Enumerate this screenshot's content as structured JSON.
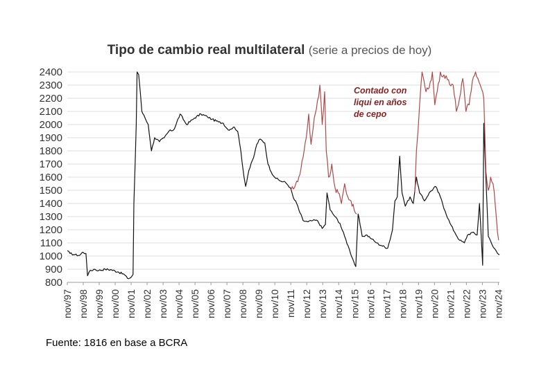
{
  "title": {
    "main": "Tipo de cambio real multilateral",
    "sub": "(serie a precios de hoy)"
  },
  "source": "Fuente: 1816 en base a BCRA",
  "colors": {
    "oficial": "#111111",
    "ccl": "#b04848",
    "grid": "#dcdcdc",
    "annotation": "#8b1e1e"
  },
  "chart_data": {
    "type": "line",
    "title": "Tipo de cambio real multilateral (serie a precios de hoy)",
    "ylim": [
      800,
      2400
    ],
    "yticks": [
      800,
      900,
      1000,
      1100,
      1200,
      1300,
      1400,
      1500,
      1600,
      1700,
      1800,
      1900,
      2000,
      2100,
      2200,
      2300,
      2400
    ],
    "xlim": [
      1997.83,
      2024.9
    ],
    "xtick_labels": [
      "nov/97",
      "nov/98",
      "nov/99",
      "nov/00",
      "nov/01",
      "nov/02",
      "nov/03",
      "nov/04",
      "nov/05",
      "nov/06",
      "nov/07",
      "nov/08",
      "nov/09",
      "nov/10",
      "nov/11",
      "nov/12",
      "nov/13",
      "nov/14",
      "nov/15",
      "nov/16",
      "nov/17",
      "nov/18",
      "nov/19",
      "nov/20",
      "nov/21",
      "nov/22",
      "nov/23",
      "nov/24"
    ],
    "grid": "horizontal",
    "annotation": [
      "Contado con",
      "liqui en años",
      "de cepo"
    ],
    "series": [
      {
        "points": [
          [
            1997.83,
            1040
          ],
          [
            1998.0,
            1020
          ],
          [
            1998.3,
            1010
          ],
          [
            1998.6,
            1005
          ],
          [
            1998.8,
            1030
          ],
          [
            1999.0,
            1020
          ],
          [
            1999.1,
            850
          ],
          [
            1999.2,
            880
          ],
          [
            1999.5,
            900
          ],
          [
            1999.8,
            890
          ],
          [
            2000.2,
            900
          ],
          [
            2000.6,
            895
          ],
          [
            2001.0,
            880
          ],
          [
            2001.4,
            860
          ],
          [
            2001.6,
            830
          ],
          [
            2001.8,
            835
          ],
          [
            2001.95,
            860
          ],
          [
            2002.0,
            1400
          ],
          [
            2002.08,
            1700
          ],
          [
            2002.15,
            2000
          ],
          [
            2002.2,
            2400
          ],
          [
            2002.3,
            2380
          ],
          [
            2002.4,
            2250
          ],
          [
            2002.5,
            2100
          ],
          [
            2002.7,
            2050
          ],
          [
            2002.9,
            2000
          ],
          [
            2003.1,
            1800
          ],
          [
            2003.3,
            1900
          ],
          [
            2003.6,
            1870
          ],
          [
            2003.9,
            1900
          ],
          [
            2004.2,
            1950
          ],
          [
            2004.5,
            1960
          ],
          [
            2004.9,
            2080
          ],
          [
            2005.3,
            2000
          ],
          [
            2005.8,
            2050
          ],
          [
            2006.2,
            2080
          ],
          [
            2006.6,
            2060
          ],
          [
            2006.9,
            2040
          ],
          [
            2007.3,
            2020
          ],
          [
            2007.6,
            2010
          ],
          [
            2007.9,
            1960
          ],
          [
            2008.3,
            1980
          ],
          [
            2008.5,
            1950
          ],
          [
            2008.7,
            1800
          ],
          [
            2008.9,
            1600
          ],
          [
            2009.0,
            1530
          ],
          [
            2009.2,
            1650
          ],
          [
            2009.5,
            1750
          ],
          [
            2009.7,
            1850
          ],
          [
            2009.9,
            1890
          ],
          [
            2010.2,
            1860
          ],
          [
            2010.4,
            1700
          ],
          [
            2010.6,
            1640
          ],
          [
            2010.9,
            1590
          ],
          [
            2011.2,
            1570
          ],
          [
            2011.5,
            1560
          ],
          [
            2011.8,
            1520
          ],
          [
            2012.0,
            1440
          ],
          [
            2012.2,
            1400
          ],
          [
            2012.4,
            1330
          ],
          [
            2012.6,
            1270
          ],
          [
            2012.9,
            1260
          ],
          [
            2013.2,
            1270
          ],
          [
            2013.5,
            1270
          ],
          [
            2013.8,
            1210
          ],
          [
            2014.0,
            1240
          ],
          [
            2014.1,
            1480
          ],
          [
            2014.3,
            1350
          ],
          [
            2014.6,
            1300
          ],
          [
            2014.9,
            1250
          ],
          [
            2015.2,
            1150
          ],
          [
            2015.5,
            1050
          ],
          [
            2015.7,
            980
          ],
          [
            2015.9,
            920
          ],
          [
            2016.05,
            1320
          ],
          [
            2016.3,
            1150
          ],
          [
            2016.6,
            1160
          ],
          [
            2016.9,
            1130
          ],
          [
            2017.2,
            1100
          ],
          [
            2017.5,
            1080
          ],
          [
            2017.9,
            1060
          ],
          [
            2018.2,
            1200
          ],
          [
            2018.35,
            1420
          ],
          [
            2018.5,
            1450
          ],
          [
            2018.65,
            1760
          ],
          [
            2018.8,
            1480
          ],
          [
            2019.0,
            1380
          ],
          [
            2019.3,
            1450
          ],
          [
            2019.5,
            1400
          ],
          [
            2019.7,
            1600
          ],
          [
            2019.9,
            1480
          ],
          [
            2020.2,
            1420
          ],
          [
            2020.5,
            1480
          ],
          [
            2020.9,
            1530
          ],
          [
            2021.2,
            1450
          ],
          [
            2021.5,
            1340
          ],
          [
            2021.8,
            1250
          ],
          [
            2022.1,
            1180
          ],
          [
            2022.4,
            1120
          ],
          [
            2022.7,
            1100
          ],
          [
            2022.9,
            1160
          ],
          [
            2023.2,
            1180
          ],
          [
            2023.5,
            1160
          ],
          [
            2023.65,
            1400
          ],
          [
            2023.85,
            930
          ],
          [
            2023.92,
            2010
          ],
          [
            2024.05,
            1600
          ],
          [
            2024.2,
            1150
          ],
          [
            2024.5,
            1070
          ],
          [
            2024.9,
            1010
          ]
        ]
      },
      {
        "points": [
          [
            2011.83,
            1500
          ],
          [
            2012.0,
            1510
          ],
          [
            2012.2,
            1570
          ],
          [
            2012.4,
            1620
          ],
          [
            2012.6,
            1750
          ],
          [
            2012.8,
            1900
          ],
          [
            2012.95,
            2080
          ],
          [
            2013.1,
            1850
          ],
          [
            2013.3,
            2050
          ],
          [
            2013.5,
            2180
          ],
          [
            2013.65,
            2300
          ],
          [
            2013.8,
            2000
          ],
          [
            2013.95,
            2250
          ],
          [
            2014.05,
            1800
          ],
          [
            2014.2,
            1600
          ],
          [
            2014.4,
            1700
          ],
          [
            2014.6,
            1520
          ],
          [
            2014.8,
            1480
          ],
          [
            2015.0,
            1400
          ],
          [
            2015.2,
            1550
          ],
          [
            2015.4,
            1450
          ],
          [
            2015.6,
            1420
          ],
          [
            2015.8,
            1350
          ],
          [
            2015.95,
            1320
          ],
          [
            2019.6,
            1480
          ],
          [
            2019.7,
            1800
          ],
          [
            2019.8,
            1950
          ],
          [
            2019.9,
            2150
          ],
          [
            2020.05,
            2400
          ],
          [
            2020.3,
            2250
          ],
          [
            2020.5,
            2280
          ],
          [
            2020.7,
            2400
          ],
          [
            2020.85,
            2150
          ],
          [
            2021.0,
            2250
          ],
          [
            2021.2,
            2400
          ],
          [
            2022.0,
            2300
          ],
          [
            2022.2,
            2100
          ],
          [
            2022.4,
            2200
          ],
          [
            2022.6,
            2350
          ],
          [
            2022.8,
            2100
          ],
          [
            2023.0,
            2150
          ],
          [
            2023.2,
            2330
          ],
          [
            2023.4,
            2400
          ],
          [
            2023.7,
            2300
          ],
          [
            2023.85,
            2250
          ],
          [
            2023.92,
            2200
          ],
          [
            2024.05,
            1650
          ],
          [
            2024.2,
            1500
          ],
          [
            2024.35,
            1600
          ],
          [
            2024.5,
            1550
          ],
          [
            2024.7,
            1300
          ],
          [
            2024.85,
            1120
          ]
        ]
      }
    ]
  }
}
